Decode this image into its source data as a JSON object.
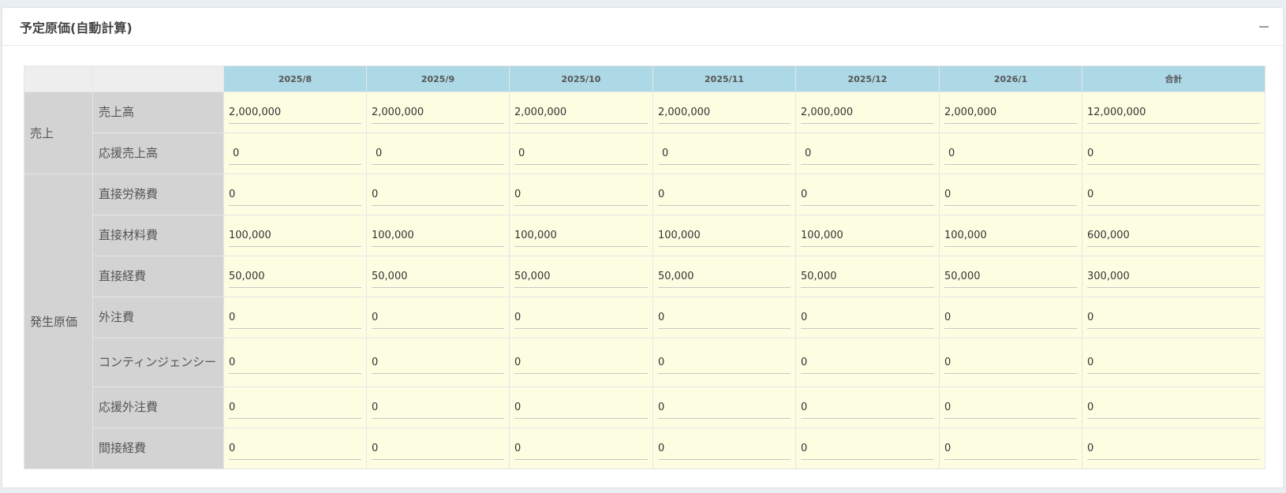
{
  "panel": {
    "title": "予定原価(自動計算)"
  },
  "table": {
    "columns": [
      "2025/8",
      "2025/9",
      "2025/10",
      "2025/11",
      "2025/12",
      "2026/1",
      "合計"
    ],
    "groups": {
      "sales": "売上",
      "cost": "発生原価"
    },
    "rows": [
      {
        "label": "売上高",
        "values": [
          "2,000,000",
          "2,000,000",
          "2,000,000",
          "2,000,000",
          "2,000,000",
          "2,000,000",
          "12,000,000"
        ]
      },
      {
        "label": "応援売上高",
        "values": [
          "0",
          "0",
          "0",
          "0",
          "0",
          "0",
          "0"
        ]
      },
      {
        "label": "直接労務費",
        "values": [
          "0",
          "0",
          "0",
          "0",
          "0",
          "0",
          "0"
        ]
      },
      {
        "label": "直接材料費",
        "values": [
          "100,000",
          "100,000",
          "100,000",
          "100,000",
          "100,000",
          "100,000",
          "600,000"
        ]
      },
      {
        "label": "直接経費",
        "values": [
          "50,000",
          "50,000",
          "50,000",
          "50,000",
          "50,000",
          "50,000",
          "300,000"
        ]
      },
      {
        "label": "外注費",
        "values": [
          "0",
          "0",
          "0",
          "0",
          "0",
          "0",
          "0"
        ]
      },
      {
        "label": "コンティンジェンシー",
        "values": [
          "0",
          "0",
          "0",
          "0",
          "0",
          "0",
          "0"
        ]
      },
      {
        "label": "応援外注費",
        "values": [
          "0",
          "0",
          "0",
          "0",
          "0",
          "0",
          "0"
        ]
      },
      {
        "label": "間接経費",
        "values": [
          "0",
          "0",
          "0",
          "0",
          "0",
          "0",
          "0"
        ]
      }
    ]
  },
  "colors": {
    "header_bg": "#add8e6",
    "label_bg": "#d3d3d3",
    "cell_bg": "#fdfde2"
  }
}
